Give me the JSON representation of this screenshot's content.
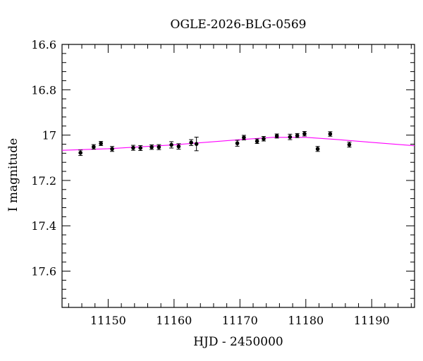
{
  "chart_data": {
    "type": "scatter",
    "title": "OGLE-2026-BLG-0569",
    "xlabel": "HJD - 2450000",
    "ylabel": "I magnitude",
    "xlim": [
      11143,
      11196.5
    ],
    "ylim": [
      17.76,
      16.6
    ],
    "y_inverted": true,
    "grid": false,
    "x_ticks": [
      11150,
      11160,
      11170,
      11180,
      11190
    ],
    "x_tick_labels": [
      "11150",
      "11160",
      "11170",
      "11180",
      "11190"
    ],
    "y_ticks": [
      16.6,
      16.8,
      17,
      17.2,
      17.4,
      17.6
    ],
    "y_tick_labels": [
      "16.6",
      "16.8",
      "17",
      "17.2",
      "17.4",
      "17.6"
    ],
    "series": [
      {
        "type": "scatter",
        "color": "#000000",
        "points": [
          {
            "x": 11145.8,
            "y": 17.078,
            "err": 0.012
          },
          {
            "x": 11147.8,
            "y": 17.052,
            "err": 0.01
          },
          {
            "x": 11148.9,
            "y": 17.037,
            "err": 0.009
          },
          {
            "x": 11150.6,
            "y": 17.061,
            "err": 0.011
          },
          {
            "x": 11153.8,
            "y": 17.056,
            "err": 0.011
          },
          {
            "x": 11154.9,
            "y": 17.057,
            "err": 0.011
          },
          {
            "x": 11156.6,
            "y": 17.053,
            "err": 0.01
          },
          {
            "x": 11157.7,
            "y": 17.053,
            "err": 0.011
          },
          {
            "x": 11159.6,
            "y": 17.043,
            "err": 0.014
          },
          {
            "x": 11160.7,
            "y": 17.05,
            "err": 0.012
          },
          {
            "x": 11162.6,
            "y": 17.033,
            "err": 0.013
          },
          {
            "x": 11163.4,
            "y": 17.039,
            "err": 0.03
          },
          {
            "x": 11169.6,
            "y": 17.036,
            "err": 0.013
          },
          {
            "x": 11170.6,
            "y": 17.011,
            "err": 0.01
          },
          {
            "x": 11172.6,
            "y": 17.027,
            "err": 0.01
          },
          {
            "x": 11173.6,
            "y": 17.016,
            "err": 0.01
          },
          {
            "x": 11175.6,
            "y": 17.004,
            "err": 0.009
          },
          {
            "x": 11177.6,
            "y": 17.008,
            "err": 0.012
          },
          {
            "x": 11178.7,
            "y": 17.002,
            "err": 0.009
          },
          {
            "x": 11179.8,
            "y": 16.994,
            "err": 0.01
          },
          {
            "x": 11181.8,
            "y": 17.061,
            "err": 0.011
          },
          {
            "x": 11183.7,
            "y": 16.995,
            "err": 0.01
          },
          {
            "x": 11186.6,
            "y": 17.042,
            "err": 0.011
          }
        ]
      },
      {
        "type": "line",
        "color": "#ff00ff",
        "x": [
          11143,
          11150,
          11160,
          11170,
          11175,
          11180,
          11185,
          11190,
          11196.5
        ],
        "y": [
          17.067,
          17.06,
          17.043,
          17.02,
          17.01,
          17.01,
          17.02,
          17.032,
          17.047
        ]
      }
    ]
  }
}
